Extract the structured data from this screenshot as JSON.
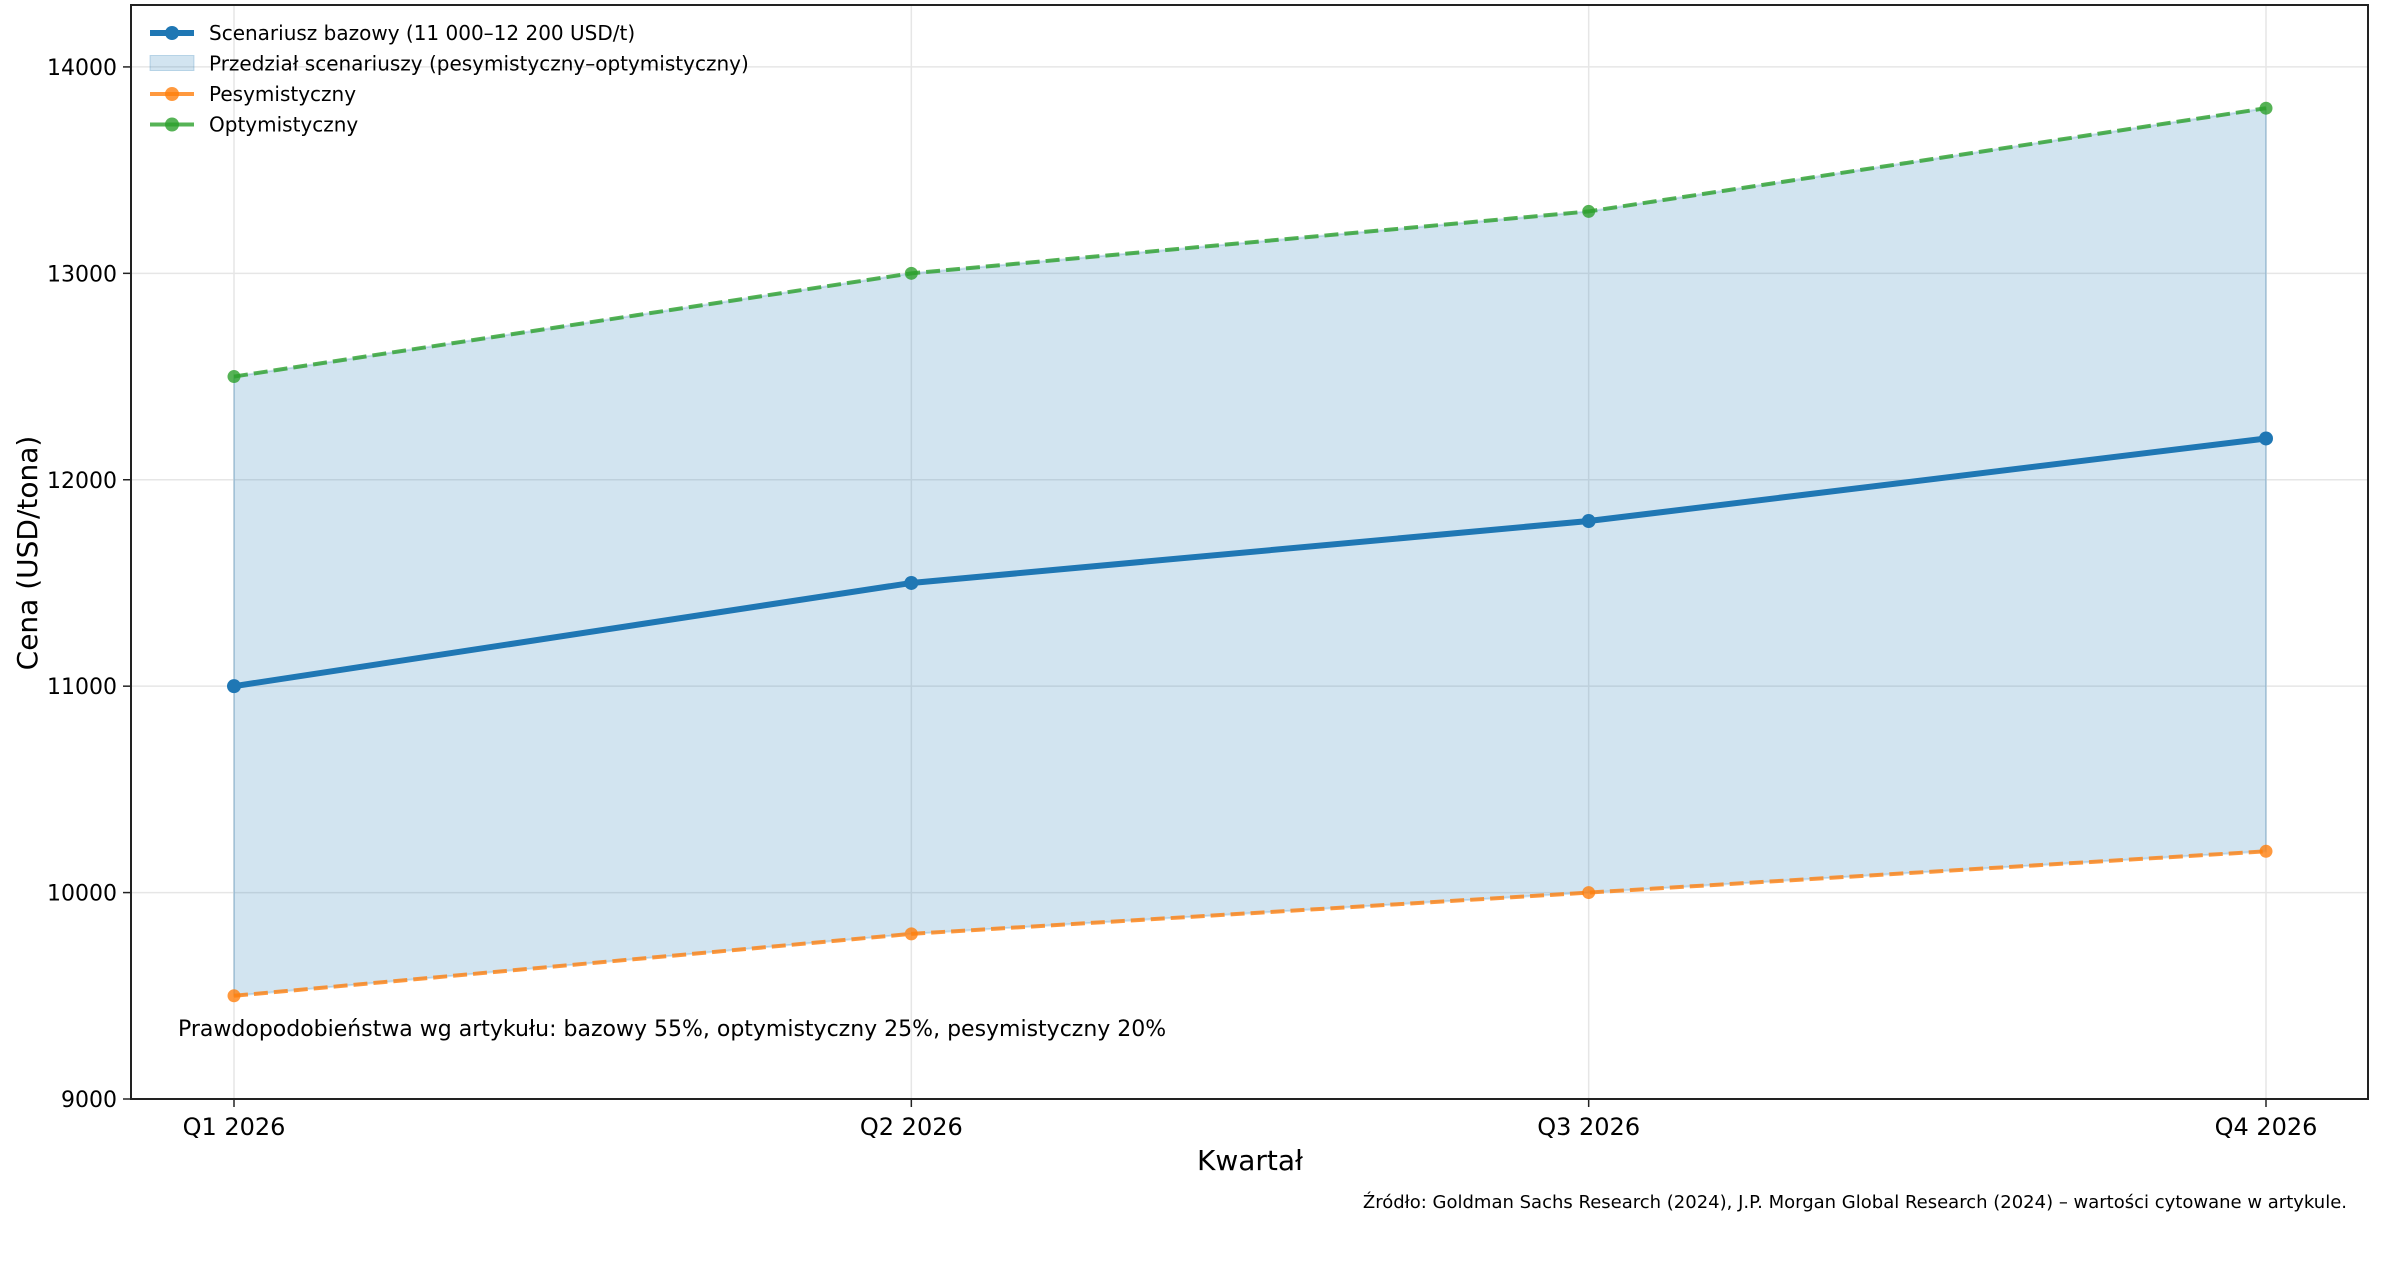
{
  "chart_data": {
    "type": "line",
    "title": "",
    "xlabel": "Kwartał",
    "ylabel": "Cena (USD/tona)",
    "categories": [
      "Q1 2026",
      "Q2 2026",
      "Q3 2026",
      "Q4 2026"
    ],
    "ylim": [
      9000,
      14300
    ],
    "yticks": [
      9000,
      10000,
      11000,
      12000,
      13000,
      14000
    ],
    "grid": true,
    "legend_position": "top-left",
    "series": [
      {
        "name": "Scenariusz bazowy (11 000–12 200 USD/t)",
        "values": [
          11000,
          11500,
          11800,
          12200
        ],
        "color": "#1f77b4",
        "style": "solid"
      },
      {
        "name": "Pesymistyczny",
        "values": [
          9500,
          9800,
          10000,
          10200
        ],
        "color": "#ff7f0e",
        "style": "dashed"
      },
      {
        "name": "Optymistyczny",
        "values": [
          12500,
          13000,
          13300,
          13800
        ],
        "color": "#2ca02c",
        "style": "dashed"
      }
    ],
    "band": {
      "name": "Przedział scenariuszy (pesymistyczny–optymistyczny)",
      "color": "#1f77b4",
      "lower": "Pesymistyczny",
      "upper": "Optymistyczny"
    },
    "annotation": "Prawdopodobieństwa wg artykułu: bazowy 55%, optymistyczny 25%, pesymistyczny 20%",
    "source": "Źródło: Goldman Sachs Research (2024), J.P. Morgan Global Research (2024) – wartości cytowane w artykule."
  }
}
